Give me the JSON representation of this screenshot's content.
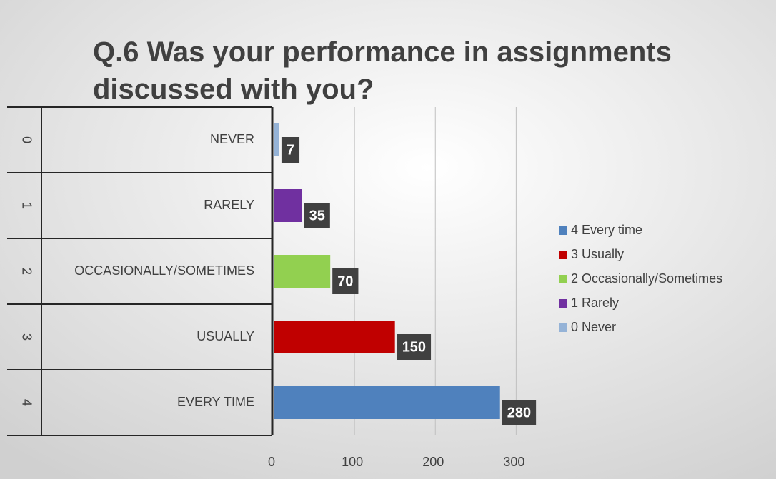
{
  "chart_data": {
    "type": "bar",
    "orientation": "horizontal",
    "title": "Q.6 Was your performance in assignments discussed with you?",
    "categories": [
      "NEVER",
      "RARELY",
      "OCCASIONALLY/SOMETIMES",
      "USUALLY",
      "EVERY TIME"
    ],
    "groups": [
      "0",
      "1",
      "2",
      "3",
      "4"
    ],
    "values": [
      7,
      35,
      70,
      150,
      280
    ],
    "colors": [
      "#95b3d7",
      "#7030a0",
      "#92d050",
      "#c00000",
      "#4f81bd"
    ],
    "legend_labels": [
      "4 Every time",
      "3 Usually",
      "2 Occasionally/Sometimes",
      "1 Rarely",
      "0 Never"
    ],
    "legend": "right",
    "xlim": [
      0,
      320
    ],
    "xticks": [
      0,
      100,
      200,
      300
    ],
    "grid": true
  }
}
